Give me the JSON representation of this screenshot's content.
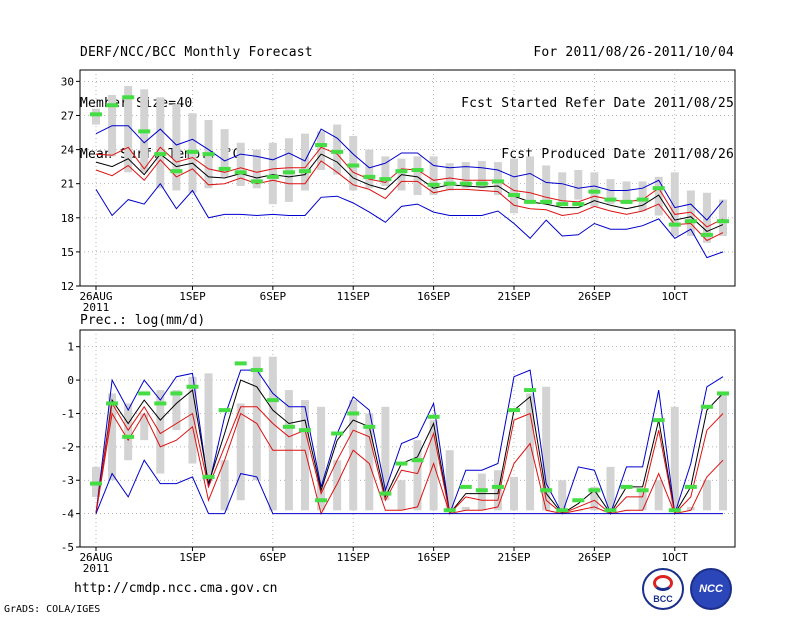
{
  "header": {
    "left": [
      "DERF/NCC/BCC Monthly Forecast",
      "Member Size=40",
      "Mean Surf. Temp.: °C"
    ],
    "right": [
      "For 2011/08/26-2011/10/04",
      "Fcst Started Refer Date 2011/08/25",
      "Fcst Produced Date 2011/08/26"
    ]
  },
  "footer": {
    "url": "http://cmdp.ncc.cma.gov.cn",
    "credit": "GrADS: COLA/IGES"
  },
  "logos": {
    "bcc": "BCC",
    "ncc": "NCC"
  },
  "colors": {
    "box": "#d3d3d3",
    "median": "#44dd44",
    "mean": "#000000",
    "inner": "#dd1111",
    "outer": "#0000cc"
  },
  "chart_data": [
    {
      "type": "box-range",
      "title": "Mean Surf. Temp.: °C",
      "days": 40,
      "ylim": [
        12,
        31
      ],
      "yticks": [
        12,
        15,
        18,
        21,
        24,
        27,
        30
      ],
      "xticks": [
        {
          "day": 0,
          "label": "26AUG",
          "sublabel": "2011"
        },
        {
          "day": 6,
          "label": "1SEP"
        },
        {
          "day": 11,
          "label": "6SEP"
        },
        {
          "day": 16,
          "label": "11SEP"
        },
        {
          "day": 21,
          "label": "16SEP"
        },
        {
          "day": 26,
          "label": "21SEP"
        },
        {
          "day": 31,
          "label": "26SEP"
        },
        {
          "day": 36,
          "label": "1OCT"
        }
      ],
      "box_top": [
        27.6,
        28.8,
        29.6,
        29.3,
        28.6,
        28.0,
        27.2,
        26.6,
        25.8,
        24.6,
        24.0,
        24.6,
        25.0,
        25.4,
        25.6,
        26.2,
        25.2,
        24.0,
        23.4,
        23.2,
        23.4,
        23.4,
        22.8,
        22.9,
        23.0,
        22.9,
        23.2,
        23.4,
        22.6,
        22.0,
        22.2,
        22.0,
        21.4,
        21.2,
        21.2,
        21.6,
        22.0,
        20.4,
        20.2,
        19.6
      ],
      "box_bottom": [
        26.2,
        23.4,
        22.0,
        22.0,
        20.6,
        20.4,
        20.2,
        20.6,
        21.6,
        20.8,
        20.6,
        19.2,
        19.4,
        20.4,
        22.2,
        21.8,
        20.4,
        20.6,
        20.8,
        20.4,
        20.0,
        20.0,
        20.4,
        20.6,
        20.6,
        20.0,
        18.4,
        19.2,
        19.4,
        19.2,
        19.6,
        19.0,
        19.2,
        19.2,
        18.6,
        18.2,
        16.4,
        16.4,
        15.8,
        16.4
      ],
      "median": [
        27.1,
        27.9,
        28.6,
        25.6,
        23.6,
        22.1,
        23.8,
        23.6,
        22.3,
        22.0,
        21.2,
        21.6,
        22.0,
        22.1,
        24.4,
        23.8,
        22.6,
        21.6,
        21.4,
        22.1,
        22.2,
        20.9,
        21.0,
        21.0,
        21.0,
        21.2,
        20.0,
        19.4,
        19.4,
        19.2,
        19.2,
        20.3,
        19.6,
        19.4,
        19.6,
        20.6,
        17.4,
        17.7,
        16.5,
        17.7
      ],
      "series": [
        {
          "name": "outer-high",
          "color": "outer",
          "values": [
            25.4,
            26.1,
            26.1,
            24.6,
            25.8,
            24.4,
            24.9,
            24.0,
            23.0,
            23.6,
            23.4,
            23.1,
            23.7,
            23.0,
            25.8,
            25.0,
            23.6,
            22.4,
            22.8,
            23.7,
            23.7,
            22.6,
            22.4,
            22.5,
            22.4,
            22.2,
            21.6,
            21.9,
            21.1,
            21.0,
            20.6,
            20.8,
            20.4,
            20.4,
            20.6,
            21.3,
            18.9,
            19.2,
            17.8,
            19.5
          ]
        },
        {
          "name": "inner-high",
          "color": "inner",
          "values": [
            23.6,
            23.5,
            24.2,
            22.3,
            24.2,
            22.9,
            23.3,
            22.3,
            22.0,
            22.4,
            22.0,
            22.3,
            22.4,
            22.4,
            24.2,
            23.6,
            22.0,
            21.4,
            21.1,
            22.3,
            22.2,
            21.3,
            21.5,
            21.3,
            21.3,
            21.3,
            20.4,
            20.2,
            19.8,
            19.5,
            19.4,
            19.9,
            19.6,
            19.4,
            19.6,
            20.6,
            18.3,
            18.5,
            17.2,
            17.9
          ]
        },
        {
          "name": "mean",
          "color": "mean",
          "values": [
            22.9,
            22.5,
            23.2,
            21.8,
            23.6,
            22.5,
            22.8,
            21.6,
            21.5,
            21.9,
            21.5,
            21.8,
            21.6,
            21.8,
            23.6,
            22.9,
            21.5,
            20.9,
            20.5,
            21.8,
            21.6,
            20.6,
            20.9,
            20.8,
            20.7,
            20.8,
            19.9,
            19.4,
            19.2,
            18.9,
            18.9,
            19.5,
            19.1,
            18.8,
            19.1,
            20.0,
            17.8,
            18.1,
            16.8,
            17.4
          ]
        },
        {
          "name": "inner-low",
          "color": "inner",
          "values": [
            22.2,
            21.7,
            22.6,
            21.3,
            23.1,
            21.6,
            22.3,
            20.9,
            21.0,
            21.5,
            21.0,
            21.3,
            21.0,
            21.0,
            23.0,
            22.0,
            20.9,
            20.5,
            19.7,
            21.2,
            21.2,
            20.2,
            20.5,
            20.5,
            20.4,
            20.3,
            19.1,
            18.8,
            18.7,
            18.2,
            18.4,
            19.0,
            18.6,
            18.3,
            18.6,
            19.2,
            17.4,
            17.5,
            16.0,
            16.7
          ]
        },
        {
          "name": "outer-low",
          "color": "outer",
          "values": [
            20.5,
            18.2,
            19.6,
            19.2,
            21.0,
            18.8,
            20.4,
            18.0,
            18.3,
            18.3,
            18.2,
            18.3,
            18.2,
            18.2,
            19.8,
            19.9,
            19.3,
            18.5,
            17.6,
            19.0,
            19.2,
            18.5,
            18.2,
            18.2,
            18.2,
            18.6,
            17.5,
            16.2,
            17.8,
            16.4,
            16.5,
            17.5,
            17.0,
            17.0,
            17.3,
            17.9,
            16.2,
            17.0,
            14.5,
            15.0
          ]
        }
      ]
    },
    {
      "type": "box-range",
      "title": "Prec.: log(mm/d)",
      "days": 40,
      "ylim": [
        -5,
        1.5
      ],
      "yticks": [
        -5,
        -4,
        -3,
        -2,
        -1,
        0,
        1
      ],
      "xticks": [
        {
          "day": 0,
          "label": "26AUG",
          "sublabel": "2011"
        },
        {
          "day": 6,
          "label": "1SEP"
        },
        {
          "day": 11,
          "label": "6SEP"
        },
        {
          "day": 16,
          "label": "11SEP"
        },
        {
          "day": 21,
          "label": "16SEP"
        },
        {
          "day": 26,
          "label": "21SEP"
        },
        {
          "day": 31,
          "label": "26SEP"
        },
        {
          "day": 36,
          "label": "1OCT"
        }
      ],
      "box_top": [
        -2.6,
        -0.4,
        -0.7,
        -1.0,
        -0.3,
        -0.3,
        0.1,
        0.2,
        -2.4,
        -0.7,
        0.7,
        0.7,
        -0.3,
        -0.6,
        -0.8,
        -2.4,
        -0.6,
        -1.0,
        -0.8,
        -3.0,
        -1.8,
        -1.2,
        -2.1,
        -3.8,
        -2.8,
        -2.7,
        -2.9,
        -0.4,
        -0.2,
        -3.0,
        -3.9,
        -3.2,
        -2.6,
        -3.9,
        -3.3,
        -3.0,
        -0.8,
        -3.8,
        -3.0,
        -0.4
      ],
      "box_bottom": [
        -3.5,
        -3.0,
        -2.4,
        -1.8,
        -2.8,
        -1.5,
        -2.5,
        -3.0,
        -3.9,
        -3.6,
        -3.0,
        -3.9,
        -3.9,
        -3.9,
        -3.9,
        -3.9,
        -3.9,
        -3.9,
        -3.6,
        -3.9,
        -3.9,
        -3.9,
        -3.9,
        -3.9,
        -3.9,
        -3.9,
        -3.9,
        -3.9,
        -3.9,
        -3.9,
        -3.9,
        -3.9,
        -3.9,
        -3.9,
        -3.9,
        -3.9,
        -3.9,
        -3.9,
        -3.9,
        -3.9
      ],
      "median": [
        -3.1,
        -0.7,
        -1.7,
        -0.4,
        -0.7,
        -0.4,
        -0.2,
        -2.9,
        -0.9,
        0.5,
        0.3,
        -0.6,
        -1.4,
        -1.5,
        -3.6,
        -1.6,
        -1.0,
        -1.4,
        -3.4,
        -2.5,
        -2.4,
        -1.1,
        -3.9,
        -3.2,
        -3.3,
        -3.2,
        -0.9,
        -0.3,
        -3.3,
        -3.9,
        -3.6,
        -3.3,
        -3.9,
        -3.2,
        -3.3,
        -1.2,
        -3.9,
        -3.2,
        -0.8,
        -0.4
      ],
      "series": [
        {
          "name": "outer-high",
          "color": "outer",
          "values": [
            -4.0,
            0.0,
            -0.9,
            0.0,
            -0.6,
            0.1,
            0.2,
            -3.2,
            -1.1,
            0.3,
            0.3,
            -0.4,
            -0.8,
            -0.8,
            -3.2,
            -1.6,
            -0.5,
            -0.9,
            -3.3,
            -1.9,
            -1.7,
            -0.7,
            -4.0,
            -2.7,
            -2.7,
            -2.5,
            0.1,
            0.3,
            -3.1,
            -4.0,
            -2.6,
            -2.7,
            -4.0,
            -2.6,
            -2.6,
            -0.3,
            -4.0,
            -2.5,
            -0.2,
            0.1
          ]
        },
        {
          "name": "mean",
          "color": "mean",
          "values": [
            -4.0,
            -0.6,
            -1.3,
            -0.6,
            -1.2,
            -0.7,
            -0.3,
            -3.1,
            -1.6,
            0.0,
            -0.2,
            -0.9,
            -1.3,
            -1.2,
            -3.3,
            -1.8,
            -1.2,
            -1.4,
            -3.5,
            -2.5,
            -2.3,
            -1.3,
            -4.0,
            -3.4,
            -3.4,
            -3.4,
            -0.9,
            -0.5,
            -3.4,
            -4.0,
            -3.7,
            -3.3,
            -4.0,
            -3.2,
            -3.2,
            -1.2,
            -4.0,
            -3.2,
            -0.9,
            -0.4
          ]
        },
        {
          "name": "inner-high",
          "color": "inner",
          "values": [
            -4.0,
            -0.7,
            -1.5,
            -0.8,
            -1.6,
            -1.3,
            -1.0,
            -3.2,
            -2.0,
            -0.8,
            -0.8,
            -1.3,
            -1.7,
            -1.5,
            -3.4,
            -2.4,
            -1.5,
            -1.7,
            -3.6,
            -2.7,
            -2.8,
            -1.6,
            -4.0,
            -3.5,
            -3.6,
            -3.6,
            -1.2,
            -1.0,
            -3.6,
            -4.0,
            -3.8,
            -3.6,
            -4.0,
            -3.5,
            -3.5,
            -1.5,
            -4.0,
            -3.5,
            -1.5,
            -1.0
          ]
        },
        {
          "name": "inner-low",
          "color": "inner",
          "values": [
            -4.0,
            -1.0,
            -1.8,
            -1.0,
            -2.0,
            -1.8,
            -1.4,
            -3.6,
            -2.4,
            -1.0,
            -1.3,
            -2.1,
            -2.1,
            -2.1,
            -4.0,
            -3.1,
            -2.1,
            -2.5,
            -3.9,
            -3.9,
            -3.8,
            -2.5,
            -4.0,
            -3.9,
            -3.9,
            -3.8,
            -2.5,
            -1.9,
            -3.9,
            -4.0,
            -3.9,
            -3.8,
            -4.0,
            -3.9,
            -3.9,
            -2.8,
            -4.0,
            -3.9,
            -2.9,
            -2.4
          ]
        },
        {
          "name": "outer-low",
          "color": "outer",
          "values": [
            -4.0,
            -2.8,
            -3.5,
            -2.4,
            -3.1,
            -3.1,
            -2.9,
            -4.0,
            -4.0,
            -2.8,
            -2.9,
            -4.0,
            -4.0,
            -4.0,
            -4.0,
            -4.0,
            -4.0,
            -4.0,
            -4.0,
            -4.0,
            -4.0,
            -4.0,
            -4.0,
            -4.0,
            -4.0,
            -4.0,
            -4.0,
            -4.0,
            -4.0,
            -4.0,
            -4.0,
            -4.0,
            -4.0,
            -4.0,
            -4.0,
            -4.0,
            -4.0,
            -4.0,
            -4.0,
            -4.0
          ]
        }
      ]
    }
  ]
}
